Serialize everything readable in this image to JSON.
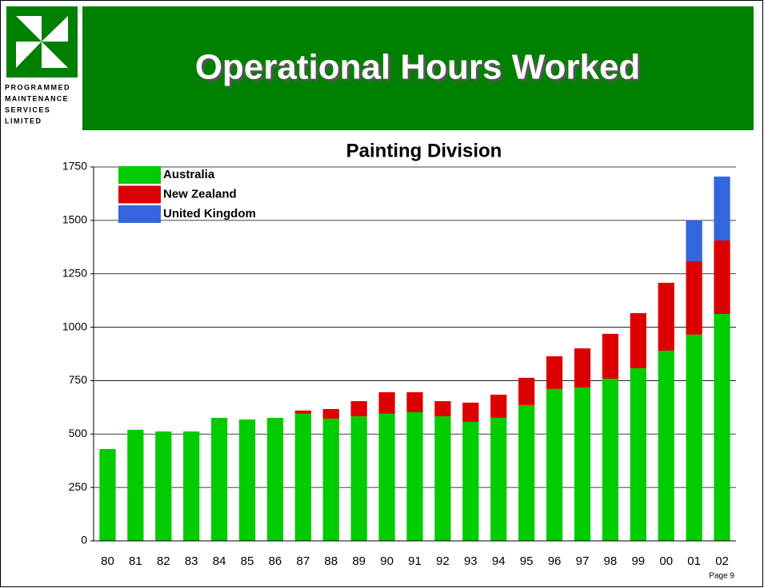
{
  "page": {
    "logo_lines": [
      "PROGRAMMED",
      "MAINTENANCE",
      "SERVICES",
      "LIMITED"
    ],
    "title": "Operational Hours Worked",
    "page_label": "Page 9"
  },
  "chart_data": {
    "type": "stacked-bar",
    "title": "Painting Division",
    "categories": [
      "80",
      "81",
      "82",
      "83",
      "84",
      "85",
      "86",
      "87",
      "88",
      "89",
      "90",
      "91",
      "92",
      "93",
      "94",
      "95",
      "96",
      "97",
      "98",
      "99",
      "00",
      "01",
      "02"
    ],
    "series": [
      {
        "name": "Australia",
        "color": "#00cc00",
        "values": [
          430,
          520,
          512,
          512,
          576,
          568,
          576,
          595,
          572,
          583,
          595,
          602,
          583,
          557,
          576,
          636,
          711,
          718,
          759,
          808,
          890,
          965,
          1062
        ]
      },
      {
        "name": "New Zealand",
        "color": "#dd0000",
        "values": [
          null,
          null,
          null,
          null,
          null,
          null,
          null,
          15,
          45,
          71,
          101,
          94,
          71,
          90,
          108,
          127,
          153,
          183,
          210,
          258,
          318,
          344,
          344
        ]
      },
      {
        "name": "United Kingdom",
        "color": "#3366dd",
        "values": [
          null,
          null,
          null,
          null,
          null,
          null,
          null,
          null,
          null,
          null,
          null,
          null,
          null,
          null,
          null,
          null,
          null,
          null,
          null,
          null,
          null,
          191,
          299
        ]
      }
    ],
    "ylim": [
      0,
      1750
    ],
    "yticks": [
      0,
      250,
      500,
      750,
      1000,
      1250,
      1500,
      1750
    ],
    "grid": true
  }
}
